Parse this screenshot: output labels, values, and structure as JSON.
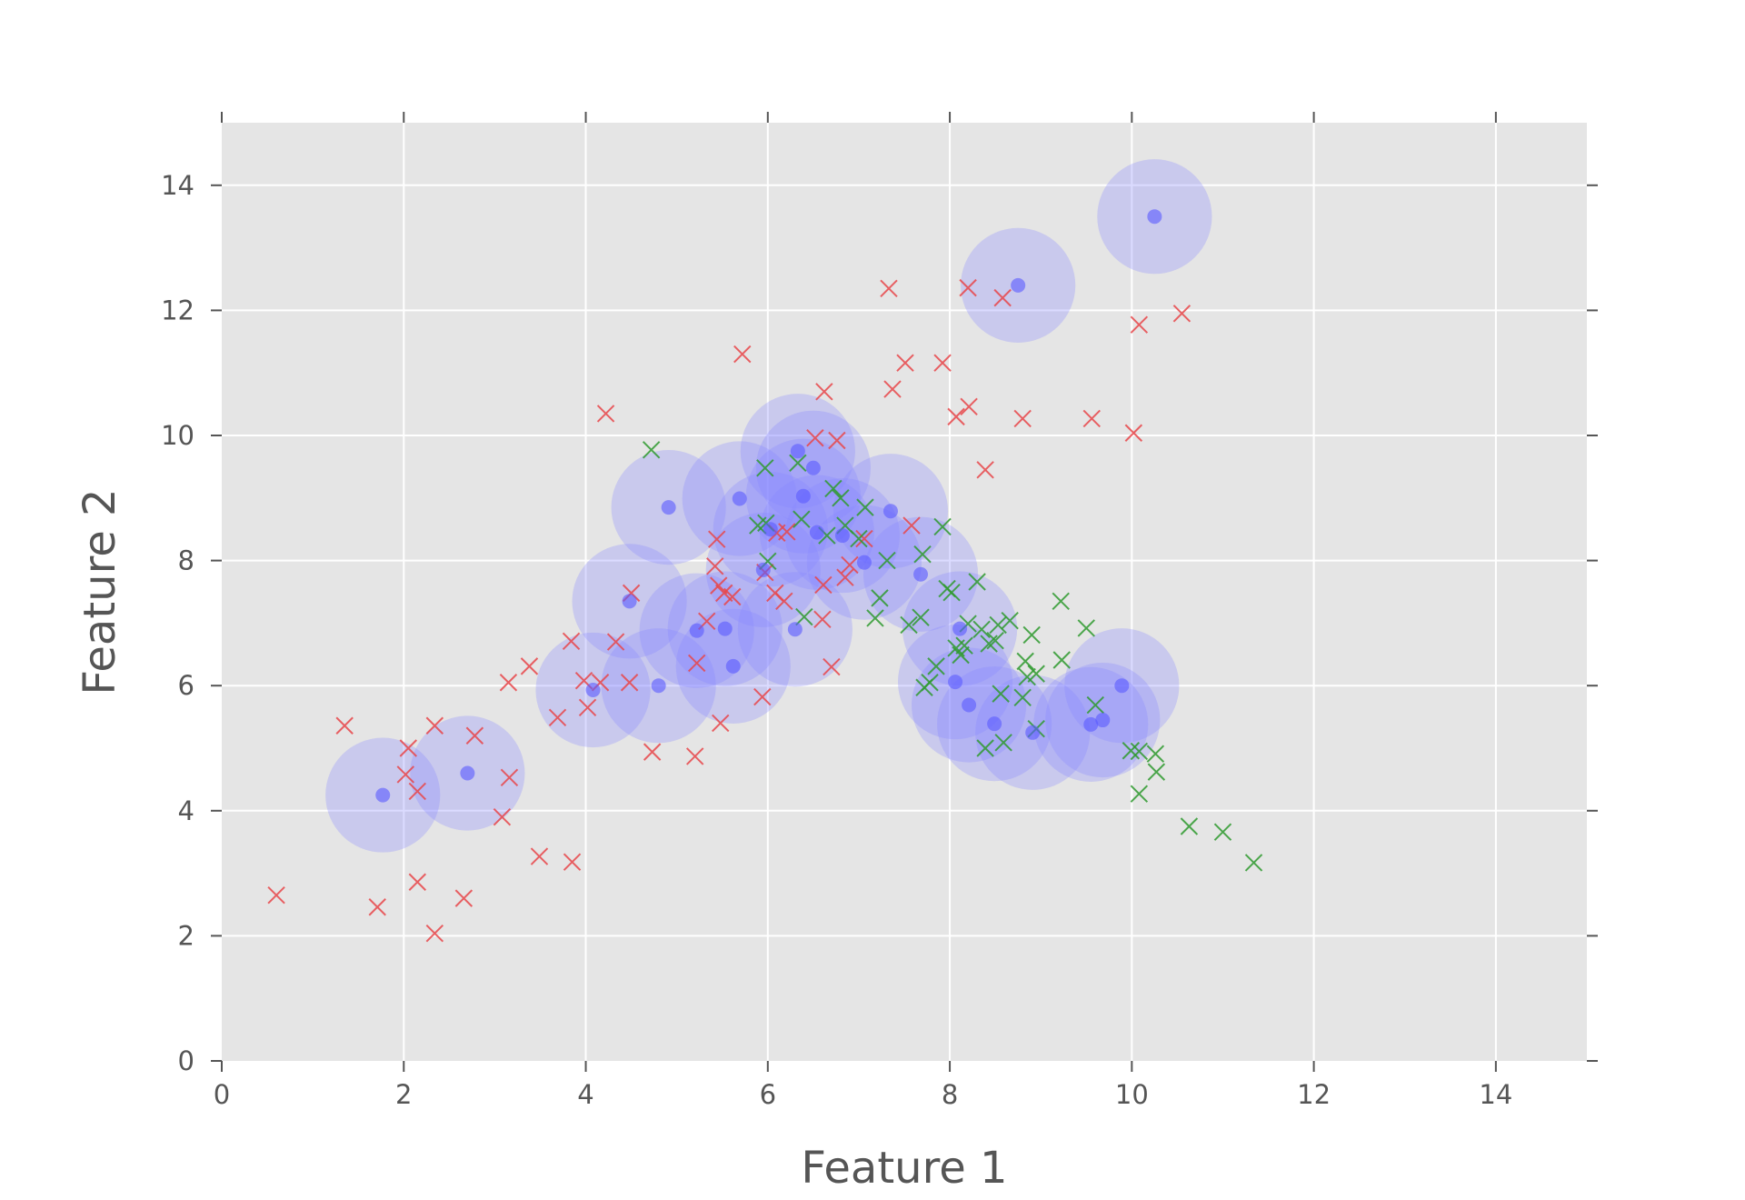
{
  "chart_data": {
    "type": "scatter",
    "title": "",
    "xlabel": "Feature 1",
    "ylabel": "Feature 2",
    "xlim": [
      0,
      15
    ],
    "ylim": [
      0,
      15
    ],
    "xticks": [
      0,
      2,
      4,
      6,
      8,
      10,
      12,
      14
    ],
    "yticks": [
      0,
      2,
      4,
      6,
      8,
      10,
      12,
      14
    ],
    "xtick_labels": [
      "0",
      "2",
      "4",
      "6",
      "8",
      "10",
      "12",
      "14"
    ],
    "ytick_labels": [
      "0",
      "2",
      "4",
      "6",
      "8",
      "10",
      "12",
      "14"
    ],
    "grid": true,
    "legend": "none",
    "colors": {
      "background": "#e5e5e5",
      "grid": "#ffffff",
      "circle_fill": "#8888ff",
      "point": "#5a5aff",
      "red_marker": "#e8474a",
      "green_marker": "#2f9a2f"
    },
    "series": [
      {
        "marker": "circle-with-halo",
        "color": "#5a5aff",
        "points": [
          [
            1.77,
            4.25
          ],
          [
            2.7,
            4.6
          ],
          [
            4.08,
            5.93
          ],
          [
            4.48,
            7.35
          ],
          [
            4.8,
            6.0
          ],
          [
            4.91,
            8.85
          ],
          [
            5.22,
            6.88
          ],
          [
            5.53,
            6.91
          ],
          [
            5.62,
            6.31
          ],
          [
            5.69,
            8.99
          ],
          [
            5.95,
            7.85
          ],
          [
            6.03,
            8.5
          ],
          [
            6.3,
            6.9
          ],
          [
            6.33,
            9.75
          ],
          [
            6.39,
            9.03
          ],
          [
            6.5,
            9.48
          ],
          [
            6.54,
            8.45
          ],
          [
            6.82,
            8.4
          ],
          [
            7.06,
            7.97
          ],
          [
            7.35,
            8.79
          ],
          [
            7.68,
            7.78
          ],
          [
            8.06,
            6.06
          ],
          [
            8.11,
            6.91
          ],
          [
            8.21,
            5.69
          ],
          [
            8.49,
            5.39
          ],
          [
            8.91,
            5.25
          ],
          [
            9.55,
            5.38
          ],
          [
            9.68,
            5.45
          ],
          [
            9.89,
            6.0
          ],
          [
            8.75,
            12.4
          ],
          [
            10.25,
            13.5
          ]
        ]
      },
      {
        "marker": "x",
        "color": "#e8474a",
        "points": [
          [
            0.6,
            2.65
          ],
          [
            1.35,
            5.36
          ],
          [
            1.71,
            2.46
          ],
          [
            2.02,
            4.58
          ],
          [
            2.05,
            5.0
          ],
          [
            2.15,
            4.31
          ],
          [
            2.15,
            2.86
          ],
          [
            2.34,
            5.36
          ],
          [
            2.34,
            2.04
          ],
          [
            2.66,
            2.6
          ],
          [
            2.78,
            5.2
          ],
          [
            3.08,
            3.9
          ],
          [
            3.16,
            4.53
          ],
          [
            3.15,
            6.05
          ],
          [
            3.38,
            6.31
          ],
          [
            3.49,
            3.27
          ],
          [
            3.69,
            5.49
          ],
          [
            3.84,
            6.71
          ],
          [
            3.85,
            3.18
          ],
          [
            3.98,
            6.08
          ],
          [
            4.02,
            5.65
          ],
          [
            4.16,
            6.05
          ],
          [
            4.22,
            10.35
          ],
          [
            4.33,
            6.7
          ],
          [
            4.48,
            6.05
          ],
          [
            4.5,
            7.48
          ],
          [
            4.73,
            4.94
          ],
          [
            5.2,
            4.87
          ],
          [
            5.22,
            6.36
          ],
          [
            5.33,
            7.03
          ],
          [
            5.42,
            7.91
          ],
          [
            5.46,
            7.6
          ],
          [
            5.48,
            5.4
          ],
          [
            5.44,
            8.34
          ],
          [
            5.52,
            7.48
          ],
          [
            5.61,
            7.42
          ],
          [
            5.72,
            11.3
          ],
          [
            5.94,
            5.82
          ],
          [
            5.97,
            7.81
          ],
          [
            6.08,
            7.48
          ],
          [
            6.1,
            8.44
          ],
          [
            6.18,
            7.35
          ],
          [
            6.21,
            8.46
          ],
          [
            6.52,
            9.96
          ],
          [
            6.61,
            7.61
          ],
          [
            6.6,
            7.06
          ],
          [
            6.62,
            10.7
          ],
          [
            6.7,
            6.3
          ],
          [
            6.76,
            9.92
          ],
          [
            6.85,
            7.73
          ],
          [
            6.9,
            7.93
          ],
          [
            7.06,
            8.35
          ],
          [
            7.33,
            12.35
          ],
          [
            7.37,
            10.74
          ],
          [
            7.51,
            11.16
          ],
          [
            7.58,
            8.56
          ],
          [
            7.92,
            11.16
          ],
          [
            8.07,
            10.3
          ],
          [
            8.21,
            10.46
          ],
          [
            8.2,
            12.36
          ],
          [
            8.39,
            9.45
          ],
          [
            8.58,
            12.2
          ],
          [
            8.8,
            10.27
          ],
          [
            9.56,
            10.27
          ],
          [
            10.02,
            10.04
          ],
          [
            10.08,
            11.77
          ],
          [
            10.55,
            11.95
          ]
        ]
      },
      {
        "marker": "x",
        "color": "#2f9a2f",
        "points": [
          [
            4.72,
            9.77
          ],
          [
            5.89,
            8.56
          ],
          [
            5.97,
            9.48
          ],
          [
            5.98,
            8.6
          ],
          [
            6.0,
            7.99
          ],
          [
            6.33,
            9.56
          ],
          [
            6.37,
            8.66
          ],
          [
            6.4,
            7.1
          ],
          [
            6.65,
            8.4
          ],
          [
            6.72,
            9.15
          ],
          [
            6.8,
            9.0
          ],
          [
            6.85,
            8.56
          ],
          [
            7.0,
            8.35
          ],
          [
            7.07,
            8.85
          ],
          [
            7.18,
            7.08
          ],
          [
            7.23,
            7.4
          ],
          [
            7.31,
            8.0
          ],
          [
            7.55,
            6.97
          ],
          [
            7.7,
            8.1
          ],
          [
            7.68,
            7.09
          ],
          [
            7.72,
            5.97
          ],
          [
            7.78,
            6.05
          ],
          [
            7.85,
            6.31
          ],
          [
            7.92,
            8.54
          ],
          [
            7.97,
            7.55
          ],
          [
            8.02,
            7.49
          ],
          [
            8.07,
            6.6
          ],
          [
            8.12,
            6.49
          ],
          [
            8.16,
            6.64
          ],
          [
            8.2,
            6.99
          ],
          [
            8.3,
            7.66
          ],
          [
            8.35,
            6.9
          ],
          [
            8.39,
            5.0
          ],
          [
            8.43,
            6.67
          ],
          [
            8.5,
            6.72
          ],
          [
            8.53,
            6.97
          ],
          [
            8.56,
            5.87
          ],
          [
            8.59,
            5.09
          ],
          [
            8.66,
            7.04
          ],
          [
            8.8,
            5.81
          ],
          [
            8.83,
            6.39
          ],
          [
            8.85,
            6.14
          ],
          [
            8.9,
            6.81
          ],
          [
            8.95,
            6.19
          ],
          [
            8.95,
            5.31
          ],
          [
            9.23,
            6.41
          ],
          [
            9.22,
            7.35
          ],
          [
            9.5,
            6.92
          ],
          [
            9.6,
            5.69
          ],
          [
            9.99,
            4.96
          ],
          [
            10.08,
            4.95
          ],
          [
            10.08,
            4.27
          ],
          [
            10.26,
            4.91
          ],
          [
            10.27,
            4.62
          ],
          [
            10.63,
            3.75
          ],
          [
            11.0,
            3.66
          ],
          [
            11.34,
            3.17
          ]
        ]
      }
    ]
  }
}
